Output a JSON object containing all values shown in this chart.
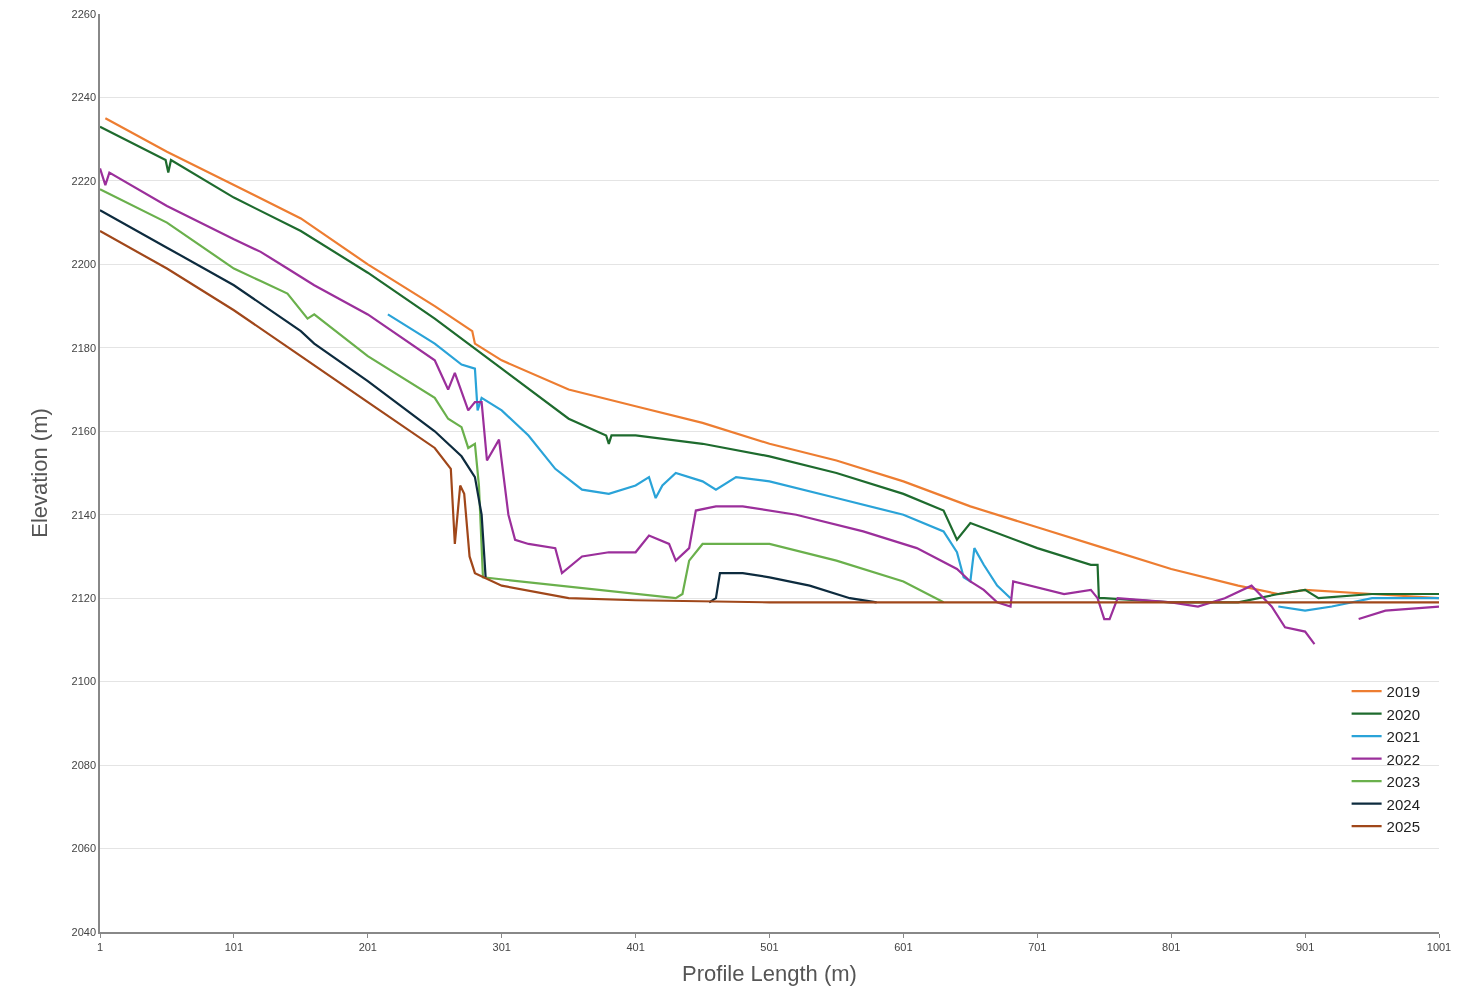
{
  "chart_data": {
    "type": "line",
    "xlabel": "Profile Length (m)",
    "ylabel": "Elevation (m)",
    "xlim": [
      1,
      1001
    ],
    "xticks": [
      1,
      101,
      201,
      301,
      401,
      501,
      601,
      701,
      801,
      901,
      1001
    ],
    "ylim": [
      2040,
      2260
    ],
    "yticks": [
      2040,
      2060,
      2080,
      2100,
      2120,
      2140,
      2160,
      2180,
      2200,
      2220,
      2240,
      2260
    ],
    "grid": "y",
    "legend": "bottom right",
    "marker": "none",
    "line_style": "solid",
    "series": [
      {
        "name": "2019",
        "color": "#ed7d31",
        "x": [
          5,
          51,
          101,
          151,
          201,
          251,
          279,
          281,
          301,
          351,
          401,
          451,
          501,
          551,
          601,
          651,
          701,
          751,
          801,
          851,
          881,
          901,
          951,
          1001
        ],
        "values": [
          2235,
          2227,
          2219,
          2211,
          2200,
          2190,
          2184,
          2181,
          2177,
          2170,
          2166,
          2162,
          2157,
          2153,
          2148,
          2142,
          2137,
          2132,
          2127,
          2123,
          2121,
          2122,
          2121,
          2120
        ]
      },
      {
        "name": "2020",
        "color": "#1e6b2e",
        "x": [
          1,
          50,
          52,
          54,
          101,
          151,
          201,
          251,
          301,
          351,
          379,
          381,
          383,
          401,
          451,
          501,
          551,
          601,
          631,
          641,
          651,
          701,
          741,
          746,
          747,
          751,
          801,
          851,
          881,
          901,
          911,
          951,
          1001
        ],
        "values": [
          2233,
          2225,
          2222,
          2225,
          2216,
          2208,
          2198,
          2187,
          2175,
          2163,
          2159,
          2157,
          2159,
          2159,
          2157,
          2154,
          2150,
          2145,
          2141,
          2134,
          2138,
          2132,
          2128,
          2128,
          2120,
          2120,
          2119,
          2119,
          2121,
          2122,
          2120,
          2121,
          2121
        ]
      },
      {
        "name": "2021",
        "color": "#2aa3d8",
        "x": [
          216,
          251,
          271,
          281,
          283,
          286,
          301,
          321,
          341,
          361,
          381,
          401,
          411,
          416,
          421,
          431,
          451,
          461,
          476,
          501,
          551,
          601,
          631,
          641,
          646,
          651,
          654,
          661,
          671,
          681,
          701,
          801,
          851,
          881,
          901,
          921,
          951,
          1001
        ],
        "values": [
          2188,
          2181,
          2176,
          2175,
          2165,
          2168,
          2165,
          2159,
          2151,
          2146,
          2145,
          2147,
          2149,
          2144,
          2147,
          2150,
          2148,
          2146,
          2149,
          2148,
          2144,
          2140,
          2136,
          2131,
          2125,
          2124,
          2132,
          2128,
          2123,
          2120,
          null,
          null,
          null,
          2118,
          2117,
          2118,
          2120,
          2120
        ]
      },
      {
        "name": "2022",
        "color": "#9b2f9b",
        "x": [
          1,
          5,
          8,
          51,
          101,
          121,
          141,
          161,
          201,
          251,
          261,
          266,
          276,
          281,
          286,
          290,
          299,
          306,
          311,
          321,
          341,
          346,
          361,
          381,
          401,
          411,
          426,
          431,
          441,
          446,
          461,
          481,
          521,
          571,
          611,
          641,
          651,
          661,
          671,
          681,
          683,
          721,
          741,
          746,
          751,
          755,
          761,
          801,
          821,
          841,
          861,
          876,
          886,
          901,
          908,
          909,
          941,
          961,
          1001
        ],
        "values": [
          2223,
          2219,
          2222,
          2214,
          2206,
          2203,
          2199,
          2195,
          2188,
          2177,
          2170,
          2174,
          2165,
          2167,
          2167,
          2153,
          2158,
          2140,
          2134,
          2133,
          2132,
          2126,
          2130,
          2131,
          2131,
          2135,
          2133,
          2129,
          2132,
          2141,
          2142,
          2142,
          2140,
          2136,
          2132,
          2127,
          2124,
          2122,
          2119,
          2118,
          2124,
          2121,
          2122,
          2120,
          2115,
          2115,
          2120,
          2119,
          2118,
          2120,
          2123,
          2118,
          2113,
          2112,
          2109,
          null,
          2115,
          2117,
          2118
        ]
      },
      {
        "name": "2023",
        "color": "#6ab04c",
        "x": [
          1,
          51,
          101,
          121,
          141,
          156,
          161,
          201,
          251,
          261,
          271,
          276,
          281,
          284,
          287,
          431,
          436,
          441,
          451,
          501,
          551,
          601,
          631
        ],
        "values": [
          2218,
          2210,
          2199,
          2196,
          2193,
          2187,
          2188,
          2178,
          2168,
          2163,
          2161,
          2156,
          2157,
          2147,
          2125,
          2120,
          2121,
          2129,
          2133,
          2133,
          2129,
          2124,
          2119
        ]
      },
      {
        "name": "2024",
        "color": "#0d2b3e",
        "x": [
          1,
          51,
          101,
          151,
          161,
          201,
          251,
          271,
          281,
          286,
          289,
          290,
          456,
          461,
          464,
          481,
          501,
          531,
          561,
          581
        ],
        "values": [
          2213,
          2204,
          2195,
          2184,
          2181,
          2172,
          2160,
          2154,
          2149,
          2140,
          2125,
          null,
          2119,
          2120,
          2126,
          2126,
          2125,
          2123,
          2120,
          2119
        ]
      },
      {
        "name": "2025",
        "color": "#a0471a",
        "x": [
          1,
          51,
          101,
          151,
          201,
          251,
          263,
          266,
          270,
          273,
          277,
          281,
          301,
          351,
          401,
          501,
          601,
          701,
          801,
          901,
          1001
        ],
        "values": [
          2208,
          2199,
          2189,
          2178,
          2167,
          2156,
          2151,
          2133,
          2147,
          2145,
          2130,
          2126,
          2123,
          2120,
          2119.5,
          2119,
          2119,
          2119,
          2119,
          2119,
          2119
        ]
      }
    ]
  }
}
